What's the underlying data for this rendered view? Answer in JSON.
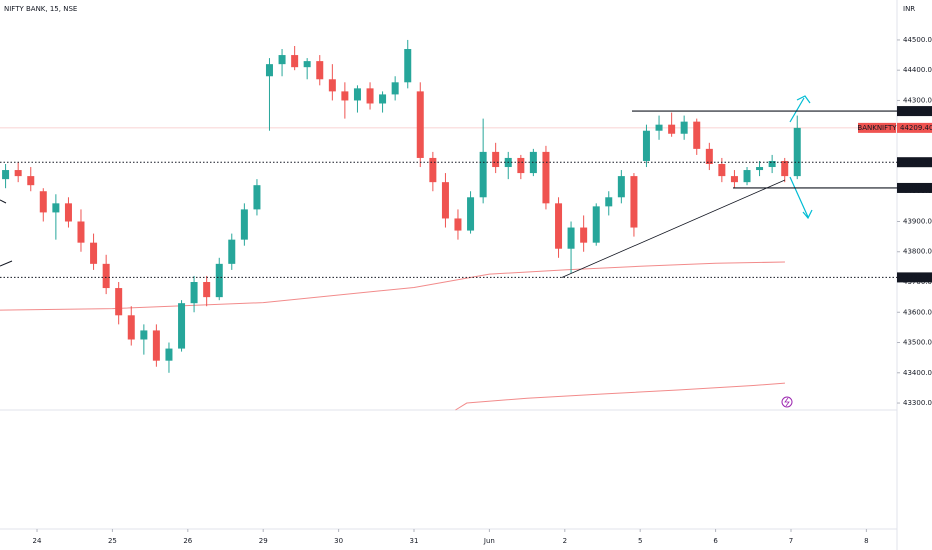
{
  "chart_data": {
    "type": "candlestick",
    "title": "NIFTY BANK, 15, NSE",
    "currency": "INR",
    "symbol": "BANKNIFTY",
    "up_color": "#26a69a",
    "down_color": "#ef5350",
    "xlim": [
      0.509,
      12.353
    ],
    "xticks": [
      {
        "value": 1,
        "label": "24"
      },
      {
        "value": 2,
        "label": "25"
      },
      {
        "value": 3,
        "label": "26"
      },
      {
        "value": 4,
        "label": "29"
      },
      {
        "value": 5,
        "label": "30"
      },
      {
        "value": 6,
        "label": "31"
      },
      {
        "value": 7,
        "label": "Jun"
      },
      {
        "value": 8,
        "label": "2"
      },
      {
        "value": 9,
        "label": "5"
      },
      {
        "value": 10,
        "label": "6"
      },
      {
        "value": 11,
        "label": "7"
      },
      {
        "value": 12,
        "label": "8"
      }
    ],
    "ylim": [
      43277,
      44632
    ],
    "yticks": [
      {
        "value": 44500,
        "label": "44500.00"
      },
      {
        "value": 44400,
        "label": "44400.00"
      },
      {
        "value": 44300,
        "label": "44300.00"
      },
      {
        "value": 44200,
        "label": "44200.00"
      },
      {
        "value": 44100,
        "label": "44100.00"
      },
      {
        "value": 44000,
        "label": "44000.00"
      },
      {
        "value": 43900,
        "label": "43900.00"
      },
      {
        "value": 43800,
        "label": "43800.00"
      },
      {
        "value": 43700,
        "label": "43700.00"
      },
      {
        "value": 43600,
        "label": "43600.00"
      },
      {
        "value": 43500,
        "label": "43500.00"
      },
      {
        "value": 43400,
        "label": "43400.00"
      },
      {
        "value": 43300,
        "label": "43300.00"
      }
    ],
    "x": [
      0.583,
      0.75,
      0.917,
      1.083,
      1.25,
      1.417,
      1.583,
      1.75,
      1.917,
      2.083,
      2.25,
      2.417,
      2.583,
      2.75,
      2.917,
      3.083,
      3.25,
      3.417,
      3.583,
      3.75,
      3.917,
      4.083,
      4.25,
      4.417,
      4.583,
      4.75,
      4.917,
      5.083,
      5.25,
      5.417,
      5.583,
      5.75,
      5.917,
      6.083,
      6.25,
      6.417,
      6.583,
      6.75,
      6.917,
      7.083,
      7.25,
      7.417,
      7.583,
      7.75,
      7.917,
      8.083,
      8.25,
      8.417,
      8.583,
      8.75,
      8.917,
      9.083,
      9.25,
      9.417,
      9.583,
      9.75,
      9.917,
      10.083,
      10.25,
      10.417,
      10.583,
      10.75,
      10.917,
      11.083
    ],
    "ohlc": [
      [
        44040,
        44090,
        44010,
        44070
      ],
      [
        44070,
        44095,
        44030,
        44050
      ],
      [
        44050,
        44080,
        44000,
        44020
      ],
      [
        44000,
        44010,
        43900,
        43930
      ],
      [
        43930,
        43990,
        43840,
        43960
      ],
      [
        43960,
        43980,
        43880,
        43900
      ],
      [
        43900,
        43940,
        43800,
        43830
      ],
      [
        43830,
        43860,
        43740,
        43760
      ],
      [
        43760,
        43790,
        43660,
        43680
      ],
      [
        43680,
        43700,
        43560,
        43590
      ],
      [
        43590,
        43620,
        43490,
        43510
      ],
      [
        43510,
        43560,
        43460,
        43540
      ],
      [
        43540,
        43560,
        43420,
        43440
      ],
      [
        43440,
        43500,
        43400,
        43480
      ],
      [
        43480,
        43640,
        43470,
        43630
      ],
      [
        43630,
        43720,
        43600,
        43700
      ],
      [
        43700,
        43720,
        43620,
        43650
      ],
      [
        43650,
        43780,
        43640,
        43760
      ],
      [
        43760,
        43860,
        43740,
        43840
      ],
      [
        43840,
        43960,
        43820,
        43940
      ],
      [
        43940,
        44040,
        43920,
        44020
      ],
      [
        44380,
        44440,
        44200,
        44420
      ],
      [
        44420,
        44470,
        44380,
        44450
      ],
      [
        44450,
        44480,
        44400,
        44410
      ],
      [
        44410,
        44440,
        44370,
        44430
      ],
      [
        44430,
        44450,
        44350,
        44370
      ],
      [
        44370,
        44420,
        44300,
        44330
      ],
      [
        44330,
        44360,
        44240,
        44300
      ],
      [
        44300,
        44350,
        44260,
        44340
      ],
      [
        44340,
        44360,
        44270,
        44290
      ],
      [
        44290,
        44330,
        44260,
        44320
      ],
      [
        44320,
        44380,
        44300,
        44360
      ],
      [
        44360,
        44500,
        44340,
        44470
      ],
      [
        44330,
        44360,
        44080,
        44110
      ],
      [
        44110,
        44130,
        44000,
        44030
      ],
      [
        44030,
        44060,
        43880,
        43910
      ],
      [
        43910,
        43940,
        43840,
        43870
      ],
      [
        43870,
        44000,
        43860,
        43980
      ],
      [
        43980,
        44240,
        43960,
        44130
      ],
      [
        44130,
        44160,
        44060,
        44080
      ],
      [
        44080,
        44130,
        44040,
        44110
      ],
      [
        44110,
        44120,
        44040,
        44060
      ],
      [
        44060,
        44140,
        44050,
        44130
      ],
      [
        44130,
        44150,
        43940,
        43960
      ],
      [
        43960,
        43980,
        43780,
        43810
      ],
      [
        43810,
        43900,
        43730,
        43880
      ],
      [
        43880,
        43920,
        43800,
        43830
      ],
      [
        43830,
        43960,
        43820,
        43950
      ],
      [
        43950,
        44000,
        43920,
        43980
      ],
      [
        43980,
        44070,
        43960,
        44050
      ],
      [
        44050,
        44060,
        43850,
        43880
      ],
      [
        44100,
        44220,
        44080,
        44200
      ],
      [
        44200,
        44250,
        44170,
        44220
      ],
      [
        44220,
        44260,
        44180,
        44190
      ],
      [
        44190,
        44250,
        44170,
        44230
      ],
      [
        44230,
        44240,
        44120,
        44140
      ],
      [
        44140,
        44160,
        44070,
        44090
      ],
      [
        44090,
        44110,
        44030,
        44050
      ],
      [
        44050,
        44070,
        44010,
        44030
      ],
      [
        44030,
        44080,
        44020,
        44070
      ],
      [
        44070,
        44100,
        44050,
        44080
      ],
      [
        44080,
        44120,
        44060,
        44100
      ],
      [
        44100,
        44110,
        44030,
        44050
      ],
      [
        44050,
        44250,
        44040,
        44209.4
      ]
    ],
    "last_price": 44209.4,
    "last_price_label": "44209.40",
    "levels": [
      {
        "value": 44264.9,
        "label": "44264.90",
        "style": "solid"
      },
      {
        "value": 44095.95,
        "label": "44095.95",
        "style": "dotted"
      },
      {
        "value": 44010.85,
        "label": "44010.85",
        "style": "solid"
      },
      {
        "value": 43715.25,
        "label": "43715.25",
        "style": "dotted"
      }
    ],
    "moving_averages": [
      {
        "color": "#f28b8b",
        "x": [
          0.509,
          2.0,
          4.0,
          6.0,
          7.0,
          8.0,
          9.0,
          10.0,
          10.92
        ],
        "values": [
          43607,
          43612,
          43632,
          43682,
          43726,
          43740,
          43752,
          43762,
          43766
        ]
      },
      {
        "color": "#f28b8b",
        "x": [
          6.55,
          6.7,
          7.5,
          8.5,
          9.5,
          10.5,
          10.92
        ],
        "values": [
          43277,
          43300,
          43316,
          43330,
          43343,
          43358,
          43366
        ]
      }
    ],
    "trendline": {
      "color": "#131722",
      "x": [
        7.96,
        10.92
      ],
      "values": [
        43715,
        44037
      ]
    }
  }
}
